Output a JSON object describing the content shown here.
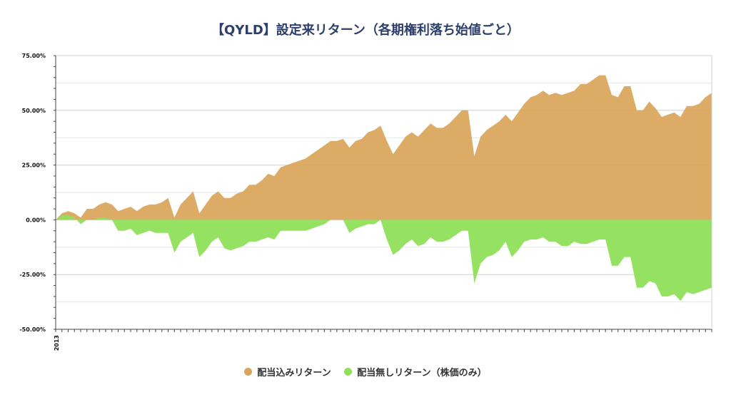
{
  "chart_data": {
    "type": "area",
    "title": "【QYLD】設定来リターン（各期権利落ち始値ごと）",
    "xlabel": "",
    "ylabel": "",
    "x_tick_label": "2013",
    "ylim": [
      -50,
      75
    ],
    "y_ticks": [
      75,
      50,
      25,
      0,
      -25,
      -50
    ],
    "y_tick_labels": [
      "75.00%",
      "50.00%",
      "25.00%",
      "0.00%",
      "-25.00%",
      "-50.00%"
    ],
    "grid": true,
    "legend_position": "bottom",
    "series": [
      {
        "name": "配当込みリターン",
        "color": "#d9a55a",
        "values": [
          0,
          3,
          4,
          3,
          1,
          5,
          5,
          7,
          8,
          7,
          4,
          5,
          6,
          4,
          6,
          7,
          7,
          8,
          10,
          1,
          7,
          10,
          13,
          3,
          7,
          11,
          13,
          10,
          10,
          12,
          13,
          16,
          16,
          18,
          21,
          20,
          24,
          25,
          26,
          27,
          28,
          30,
          32,
          34,
          36,
          36,
          37,
          33,
          36,
          37,
          40,
          41,
          43,
          36,
          30,
          34,
          38,
          40,
          38,
          41,
          44,
          42,
          42,
          44,
          47,
          50,
          50,
          29,
          38,
          41,
          43,
          45,
          48,
          45,
          49,
          53,
          56,
          57,
          59,
          57,
          58,
          57,
          58,
          59,
          62,
          62,
          64,
          66,
          66,
          57,
          56,
          61,
          61,
          50,
          50,
          54,
          51,
          47,
          48,
          49,
          47,
          52,
          52,
          53,
          56,
          58
        ]
      },
      {
        "name": "配当無しリターン（株価のみ）",
        "color": "#8fe05a",
        "values": [
          0,
          2,
          2,
          1,
          -2,
          0,
          0,
          1,
          1,
          0,
          -5,
          -5,
          -4,
          -7,
          -6,
          -5,
          -6,
          -6,
          -6,
          -15,
          -10,
          -8,
          -6,
          -17,
          -14,
          -10,
          -8,
          -13,
          -14,
          -13,
          -12,
          -10,
          -10,
          -9,
          -8,
          -9,
          -5,
          -5,
          -5,
          -5,
          -5,
          -4,
          -3,
          -2,
          0,
          0,
          0,
          -6,
          -4,
          -3,
          -2,
          -2,
          0,
          -9,
          -16,
          -14,
          -11,
          -9,
          -12,
          -11,
          -8,
          -10,
          -10,
          -9,
          -7,
          -5,
          -5,
          -29,
          -20,
          -17,
          -16,
          -14,
          -10,
          -17,
          -14,
          -10,
          -9,
          -9,
          -8,
          -10,
          -10,
          -12,
          -12,
          -10,
          -11,
          -11,
          -10,
          -9,
          -9,
          -21,
          -21,
          -17,
          -17,
          -31,
          -31,
          -28,
          -29,
          -35,
          -35,
          -34,
          -37,
          -33,
          -34,
          -33,
          -32,
          -31
        ]
      }
    ]
  }
}
